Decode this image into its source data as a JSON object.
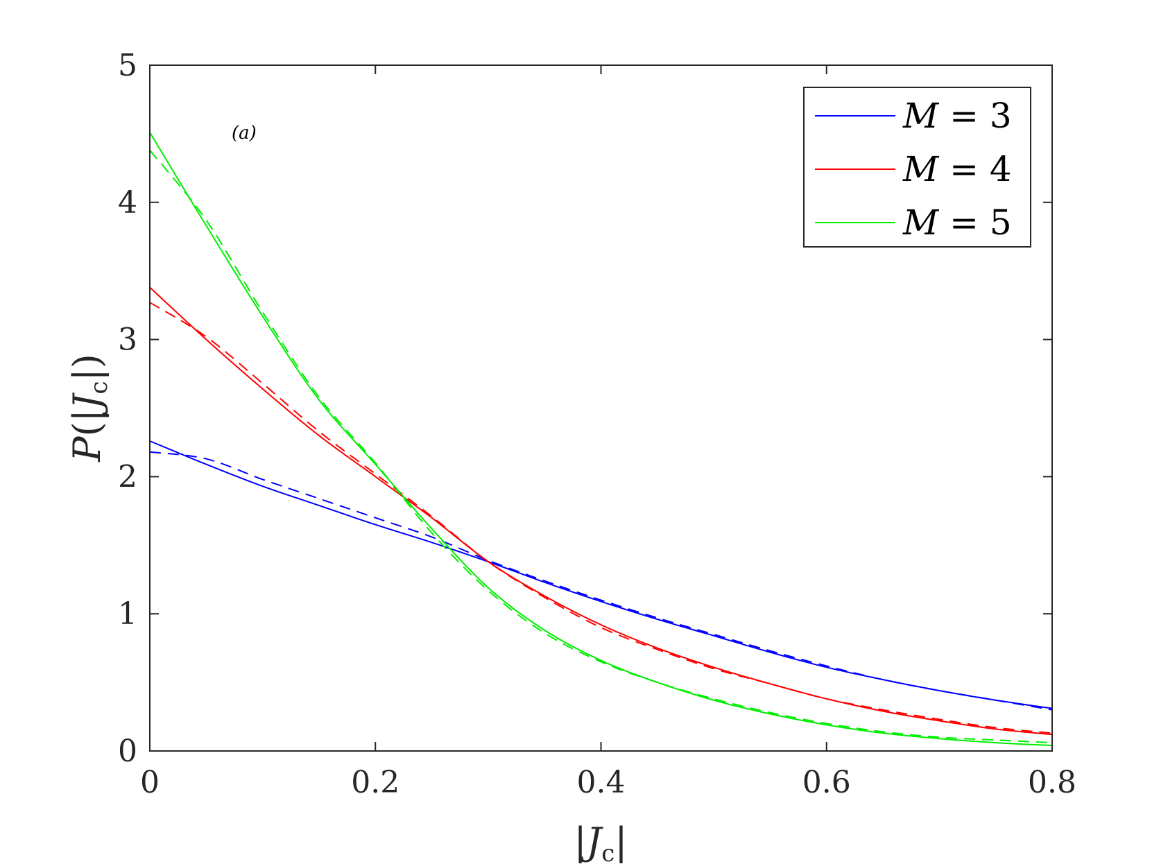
{
  "chart_data": {
    "type": "line",
    "title": "",
    "xlabel": "|J_c|",
    "ylabel": "P(|J_c|)",
    "xlim": [
      0,
      0.8
    ],
    "ylim": [
      0,
      5
    ],
    "xticks": [
      "0",
      "0.2",
      "0.4",
      "0.6",
      "0.8"
    ],
    "yticks": [
      "0",
      "1",
      "2",
      "3",
      "4",
      "5"
    ],
    "grid": false,
    "legend_position": "top-right",
    "annotation": "(a)",
    "series": [
      {
        "name": "M = 3",
        "color": "#0000ff",
        "style": "solid",
        "x": [
          0,
          0.05,
          0.1,
          0.15,
          0.2,
          0.25,
          0.3,
          0.35,
          0.4,
          0.45,
          0.5,
          0.55,
          0.6,
          0.65,
          0.7,
          0.75,
          0.8
        ],
        "y": [
          2.26,
          2.09,
          1.93,
          1.79,
          1.65,
          1.52,
          1.38,
          1.23,
          1.09,
          0.96,
          0.84,
          0.72,
          0.61,
          0.52,
          0.44,
          0.37,
          0.31
        ]
      },
      {
        "name": "M = 3 (dashed)",
        "color": "#0000ff",
        "style": "dashed",
        "x": [
          0,
          0.05,
          0.1,
          0.15,
          0.2,
          0.25,
          0.3,
          0.35,
          0.4,
          0.45,
          0.5,
          0.55,
          0.6,
          0.65,
          0.7,
          0.75,
          0.8
        ],
        "y": [
          2.18,
          2.13,
          1.98,
          1.84,
          1.7,
          1.56,
          1.39,
          1.24,
          1.1,
          0.97,
          0.85,
          0.73,
          0.62,
          0.52,
          0.44,
          0.37,
          0.3
        ]
      },
      {
        "name": "M = 4",
        "color": "#ff0000",
        "style": "solid",
        "x": [
          0,
          0.05,
          0.1,
          0.15,
          0.2,
          0.25,
          0.3,
          0.35,
          0.4,
          0.45,
          0.5,
          0.55,
          0.6,
          0.65,
          0.7,
          0.75,
          0.8
        ],
        "y": [
          3.38,
          3.0,
          2.64,
          2.3,
          2.0,
          1.7,
          1.38,
          1.13,
          0.92,
          0.75,
          0.61,
          0.49,
          0.38,
          0.29,
          0.22,
          0.16,
          0.12
        ]
      },
      {
        "name": "M = 4 (dashed)",
        "color": "#ff0000",
        "style": "dashed",
        "x": [
          0,
          0.05,
          0.1,
          0.15,
          0.2,
          0.25,
          0.3,
          0.35,
          0.4,
          0.45,
          0.5,
          0.55,
          0.6,
          0.65,
          0.7,
          0.75,
          0.8
        ],
        "y": [
          3.27,
          3.02,
          2.68,
          2.33,
          2.02,
          1.71,
          1.38,
          1.12,
          0.9,
          0.74,
          0.6,
          0.49,
          0.38,
          0.3,
          0.23,
          0.17,
          0.13
        ]
      },
      {
        "name": "M = 5",
        "color": "#00ee00",
        "style": "solid",
        "x": [
          0,
          0.05,
          0.1,
          0.15,
          0.2,
          0.25,
          0.3,
          0.35,
          0.4,
          0.45,
          0.5,
          0.55,
          0.6,
          0.65,
          0.7,
          0.75,
          0.8
        ],
        "y": [
          4.51,
          3.83,
          3.17,
          2.56,
          2.09,
          1.62,
          1.19,
          0.88,
          0.66,
          0.5,
          0.37,
          0.27,
          0.19,
          0.13,
          0.09,
          0.06,
          0.04
        ]
      },
      {
        "name": "M = 5 (dashed)",
        "color": "#00ee00",
        "style": "dashed",
        "x": [
          0,
          0.05,
          0.1,
          0.15,
          0.2,
          0.25,
          0.3,
          0.35,
          0.4,
          0.45,
          0.5,
          0.55,
          0.6,
          0.65,
          0.7,
          0.75,
          0.8
        ],
        "y": [
          4.38,
          3.87,
          3.2,
          2.58,
          2.1,
          1.59,
          1.17,
          0.86,
          0.65,
          0.5,
          0.38,
          0.28,
          0.2,
          0.14,
          0.1,
          0.08,
          0.06
        ]
      }
    ],
    "legend": [
      {
        "label": "M = 3",
        "color": "#0000ff"
      },
      {
        "label": "M = 4",
        "color": "#ff0000"
      },
      {
        "label": "M = 5",
        "color": "#00ee00"
      }
    ]
  }
}
